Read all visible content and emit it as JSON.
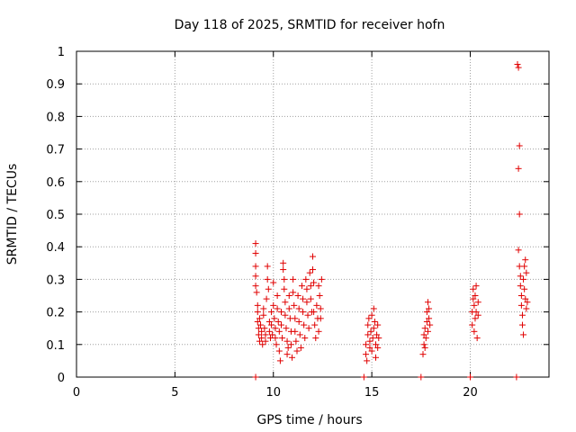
{
  "chart_data": {
    "type": "scatter",
    "title": "Day 118 of 2025, SRMTID for receiver hofn",
    "xlabel": "GPS time / hours",
    "ylabel": "SRMTID / TECUs",
    "xlim": [
      0,
      24
    ],
    "ylim": [
      0,
      1
    ],
    "xticks": [
      0,
      5,
      10,
      15,
      20
    ],
    "yticks": [
      0,
      0.1,
      0.2,
      0.3,
      0.4,
      0.5,
      0.6,
      0.7,
      0.8,
      0.9,
      1
    ],
    "ytick_labels": [
      "0",
      "0.1",
      "0.2",
      "0.3",
      "0.4",
      "0.5",
      "0.6",
      "0.7",
      "0.8",
      "0.9",
      "1"
    ],
    "grid": true,
    "marker": "+",
    "color": "#e00000",
    "series": [
      {
        "points": [
          [
            9.1,
            0.41
          ],
          [
            9.1,
            0.38
          ],
          [
            9.1,
            0.34
          ],
          [
            9.1,
            0.31
          ],
          [
            9.1,
            0.28
          ],
          [
            9.15,
            0.26
          ],
          [
            9.2,
            0.22
          ],
          [
            9.2,
            0.2
          ],
          [
            9.2,
            0.17
          ],
          [
            9.25,
            0.15
          ],
          [
            9.25,
            0.13
          ],
          [
            9.3,
            0.11
          ],
          [
            9.3,
            0.18
          ],
          [
            9.35,
            0.16
          ],
          [
            9.4,
            0.14
          ],
          [
            9.4,
            0.12
          ],
          [
            9.45,
            0.1
          ],
          [
            9.5,
            0.21
          ],
          [
            9.5,
            0.19
          ],
          [
            9.55,
            0.15
          ],
          [
            9.6,
            0.13
          ],
          [
            9.6,
            0.11
          ],
          [
            9.65,
            0.24
          ],
          [
            9.7,
            0.34
          ],
          [
            9.7,
            0.3
          ],
          [
            9.75,
            0.27
          ],
          [
            9.8,
            0.17
          ],
          [
            9.8,
            0.14
          ],
          [
            9.85,
            0.12
          ],
          [
            9.9,
            0.2
          ],
          [
            9.9,
            0.16
          ],
          [
            9.95,
            0.13
          ],
          [
            10.0,
            0.29
          ],
          [
            10.0,
            0.22
          ],
          [
            10.05,
            0.18
          ],
          [
            10.1,
            0.15
          ],
          [
            10.1,
            0.12
          ],
          [
            10.15,
            0.1
          ],
          [
            10.2,
            0.25
          ],
          [
            10.2,
            0.21
          ],
          [
            10.25,
            0.17
          ],
          [
            10.3,
            0.14
          ],
          [
            10.3,
            0.08
          ],
          [
            10.35,
            0.05
          ],
          [
            10.4,
            0.2
          ],
          [
            10.4,
            0.16
          ],
          [
            10.45,
            0.12
          ],
          [
            10.5,
            0.35
          ],
          [
            10.5,
            0.33
          ],
          [
            10.55,
            0.3
          ],
          [
            10.55,
            0.27
          ],
          [
            10.6,
            0.23
          ],
          [
            10.6,
            0.19
          ],
          [
            10.65,
            0.15
          ],
          [
            10.7,
            0.11
          ],
          [
            10.7,
            0.07
          ],
          [
            10.75,
            0.09
          ],
          [
            10.8,
            0.25
          ],
          [
            10.8,
            0.21
          ],
          [
            10.85,
            0.18
          ],
          [
            10.9,
            0.14
          ],
          [
            10.9,
            0.1
          ],
          [
            10.95,
            0.06
          ],
          [
            11.0,
            0.3
          ],
          [
            11.0,
            0.26
          ],
          [
            11.05,
            0.22
          ],
          [
            11.1,
            0.18
          ],
          [
            11.1,
            0.14
          ],
          [
            11.15,
            0.11
          ],
          [
            11.2,
            0.08
          ],
          [
            11.25,
            0.25
          ],
          [
            11.3,
            0.21
          ],
          [
            11.3,
            0.17
          ],
          [
            11.35,
            0.13
          ],
          [
            11.4,
            0.09
          ],
          [
            11.45,
            0.28
          ],
          [
            11.5,
            0.24
          ],
          [
            11.5,
            0.2
          ],
          [
            11.55,
            0.16
          ],
          [
            11.6,
            0.12
          ],
          [
            11.65,
            0.3
          ],
          [
            11.7,
            0.27
          ],
          [
            11.7,
            0.23
          ],
          [
            11.75,
            0.19
          ],
          [
            11.8,
            0.15
          ],
          [
            11.85,
            0.32
          ],
          [
            11.9,
            0.28
          ],
          [
            11.9,
            0.24
          ],
          [
            11.95,
            0.2
          ],
          [
            12.0,
            0.37
          ],
          [
            12.0,
            0.33
          ],
          [
            12.05,
            0.29
          ],
          [
            12.05,
            0.2
          ],
          [
            12.1,
            0.16
          ],
          [
            12.15,
            0.12
          ],
          [
            12.2,
            0.22
          ],
          [
            12.25,
            0.18
          ],
          [
            12.3,
            0.14
          ],
          [
            12.3,
            0.28
          ],
          [
            12.35,
            0.25
          ],
          [
            12.4,
            0.21
          ],
          [
            12.4,
            0.18
          ],
          [
            12.45,
            0.3
          ],
          [
            14.7,
            0.1
          ],
          [
            14.7,
            0.07
          ],
          [
            14.75,
            0.05
          ],
          [
            14.8,
            0.13
          ],
          [
            14.8,
            0.16
          ],
          [
            14.85,
            0.18
          ],
          [
            14.9,
            0.11
          ],
          [
            14.9,
            0.09
          ],
          [
            14.95,
            0.14
          ],
          [
            15.0,
            0.19
          ],
          [
            15.0,
            0.08
          ],
          [
            15.05,
            0.12
          ],
          [
            15.1,
            0.15
          ],
          [
            15.1,
            0.21
          ],
          [
            15.15,
            0.17
          ],
          [
            15.2,
            0.1
          ],
          [
            15.2,
            0.06
          ],
          [
            15.25,
            0.13
          ],
          [
            15.3,
            0.16
          ],
          [
            15.3,
            0.09
          ],
          [
            15.35,
            0.12
          ],
          [
            17.6,
            0.07
          ],
          [
            17.65,
            0.1
          ],
          [
            17.65,
            0.13
          ],
          [
            17.7,
            0.15
          ],
          [
            17.7,
            0.09
          ],
          [
            17.75,
            0.12
          ],
          [
            17.8,
            0.17
          ],
          [
            17.8,
            0.2
          ],
          [
            17.85,
            0.23
          ],
          [
            17.85,
            0.14
          ],
          [
            17.9,
            0.18
          ],
          [
            17.9,
            0.21
          ],
          [
            17.95,
            0.16
          ],
          [
            20.1,
            0.16
          ],
          [
            20.1,
            0.2
          ],
          [
            20.15,
            0.24
          ],
          [
            20.15,
            0.27
          ],
          [
            20.2,
            0.22
          ],
          [
            20.2,
            0.14
          ],
          [
            20.25,
            0.18
          ],
          [
            20.25,
            0.25
          ],
          [
            20.3,
            0.28
          ],
          [
            20.3,
            0.2
          ],
          [
            20.35,
            0.12
          ],
          [
            20.4,
            0.19
          ],
          [
            20.4,
            0.23
          ],
          [
            22.4,
            0.96
          ],
          [
            22.45,
            0.95
          ],
          [
            22.5,
            0.71
          ],
          [
            22.45,
            0.64
          ],
          [
            22.5,
            0.5
          ],
          [
            22.45,
            0.39
          ],
          [
            22.5,
            0.34
          ],
          [
            22.55,
            0.31
          ],
          [
            22.55,
            0.28
          ],
          [
            22.6,
            0.25
          ],
          [
            22.6,
            0.22
          ],
          [
            22.65,
            0.19
          ],
          [
            22.65,
            0.16
          ],
          [
            22.7,
            0.13
          ],
          [
            22.7,
            0.3
          ],
          [
            22.75,
            0.27
          ],
          [
            22.75,
            0.34
          ],
          [
            22.8,
            0.36
          ],
          [
            22.8,
            0.24
          ],
          [
            22.85,
            0.21
          ],
          [
            22.85,
            0.32
          ],
          [
            22.9,
            0.23
          ]
        ]
      },
      {
        "points": [
          [
            9.1,
            0
          ],
          [
            14.6,
            0
          ],
          [
            17.5,
            0
          ],
          [
            20.0,
            0
          ],
          [
            22.35,
            0
          ]
        ]
      }
    ]
  }
}
